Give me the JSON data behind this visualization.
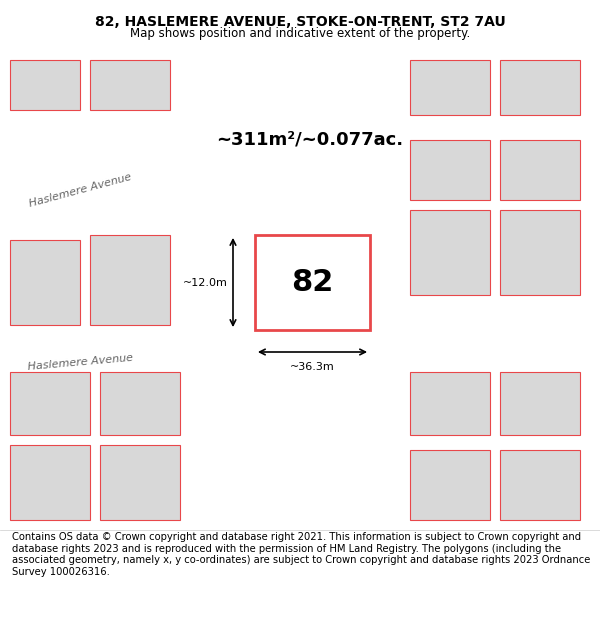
{
  "title_line1": "82, HASLEMERE AVENUE, STOKE-ON-TRENT, ST2 7AU",
  "title_line2": "Map shows position and indicative extent of the property.",
  "footer_text": "Contains OS data © Crown copyright and database right 2021. This information is subject to Crown copyright and database rights 2023 and is reproduced with the permission of HM Land Registry. The polygons (including the associated geometry, namely x, y co-ordinates) are subject to Crown copyright and database rights 2023 Ordnance Survey 100026316.",
  "area_text": "~311m²/~0.077ac.",
  "dimension_width": "~36.3m",
  "dimension_height": "~12.0m",
  "property_number": "82",
  "bg_color": "#f5f5f5",
  "map_bg": "#f0f0f0",
  "road_color": "#ffffff",
  "building_fill": "#d8d8d8",
  "boundary_color": "#e8474a",
  "highlight_fill": "#ffffff",
  "title_fontsize": 10,
  "subtitle_fontsize": 8.5,
  "footer_fontsize": 7.2
}
